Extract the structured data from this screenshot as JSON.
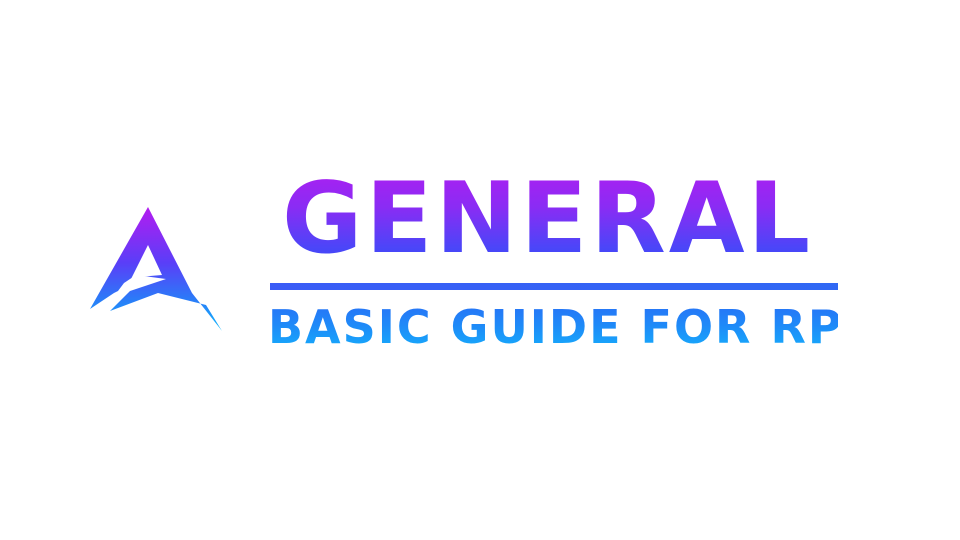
{
  "logo": {
    "icon": "stylized-letter-a-icon",
    "colors": [
      "#b41cf0",
      "#4a46f8",
      "#10b8fc"
    ]
  },
  "title": "GENERAL",
  "subtitle": "BASIC GUIDE FOR RP",
  "colors": {
    "title_top": "#b41cf0",
    "title_bottom": "#3a4cf8",
    "divider": "#3a5cf6",
    "subtitle_top": "#2a6cf6",
    "subtitle_bottom": "#14b4fc",
    "background": "#ffffff"
  }
}
